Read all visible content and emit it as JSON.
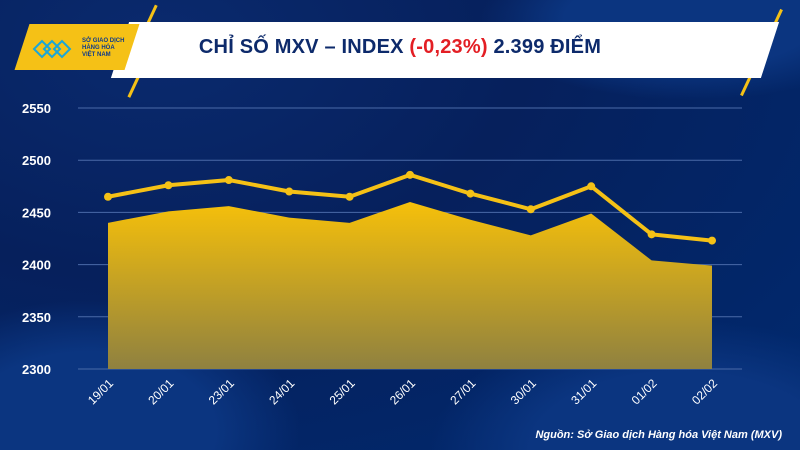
{
  "header": {
    "title_prefix": "CHỈ SỐ MXV – INDEX ",
    "title_change": "(-0,23%)",
    "title_suffix": " 2.399 ĐIỂM",
    "logo_text": "SỞ GIAO DỊCH HÀNG HÓA VIỆT NAM"
  },
  "source": "Nguồn: Sở Giao dịch Hàng hóa Việt Nam (MXV)",
  "colors": {
    "background": "#002a70",
    "accent": "#f5c116",
    "negative": "#e31e24",
    "title": "#0d2a6b"
  },
  "chart_data": {
    "type": "area",
    "title": "",
    "xlabel": "",
    "ylabel": "",
    "categories": [
      "19/01",
      "20/01",
      "23/01",
      "24/01",
      "25/01",
      "26/01",
      "27/01",
      "30/01",
      "31/01",
      "01/02",
      "02/02"
    ],
    "series": [
      {
        "type": "area",
        "values": [
          2440,
          2451,
          2456,
          2445,
          2440,
          2460,
          2443,
          2428,
          2449,
          2404,
          2399
        ]
      },
      {
        "type": "line",
        "values": [
          2465,
          2476,
          2481,
          2470,
          2465,
          2486,
          2468,
          2453,
          2475,
          2429,
          2423
        ]
      }
    ],
    "ylim": [
      2300,
      2550
    ],
    "yticks": [
      "2300",
      "2350",
      "2400",
      "2450",
      "2500",
      "2550"
    ],
    "grid": true,
    "legend": "none"
  }
}
